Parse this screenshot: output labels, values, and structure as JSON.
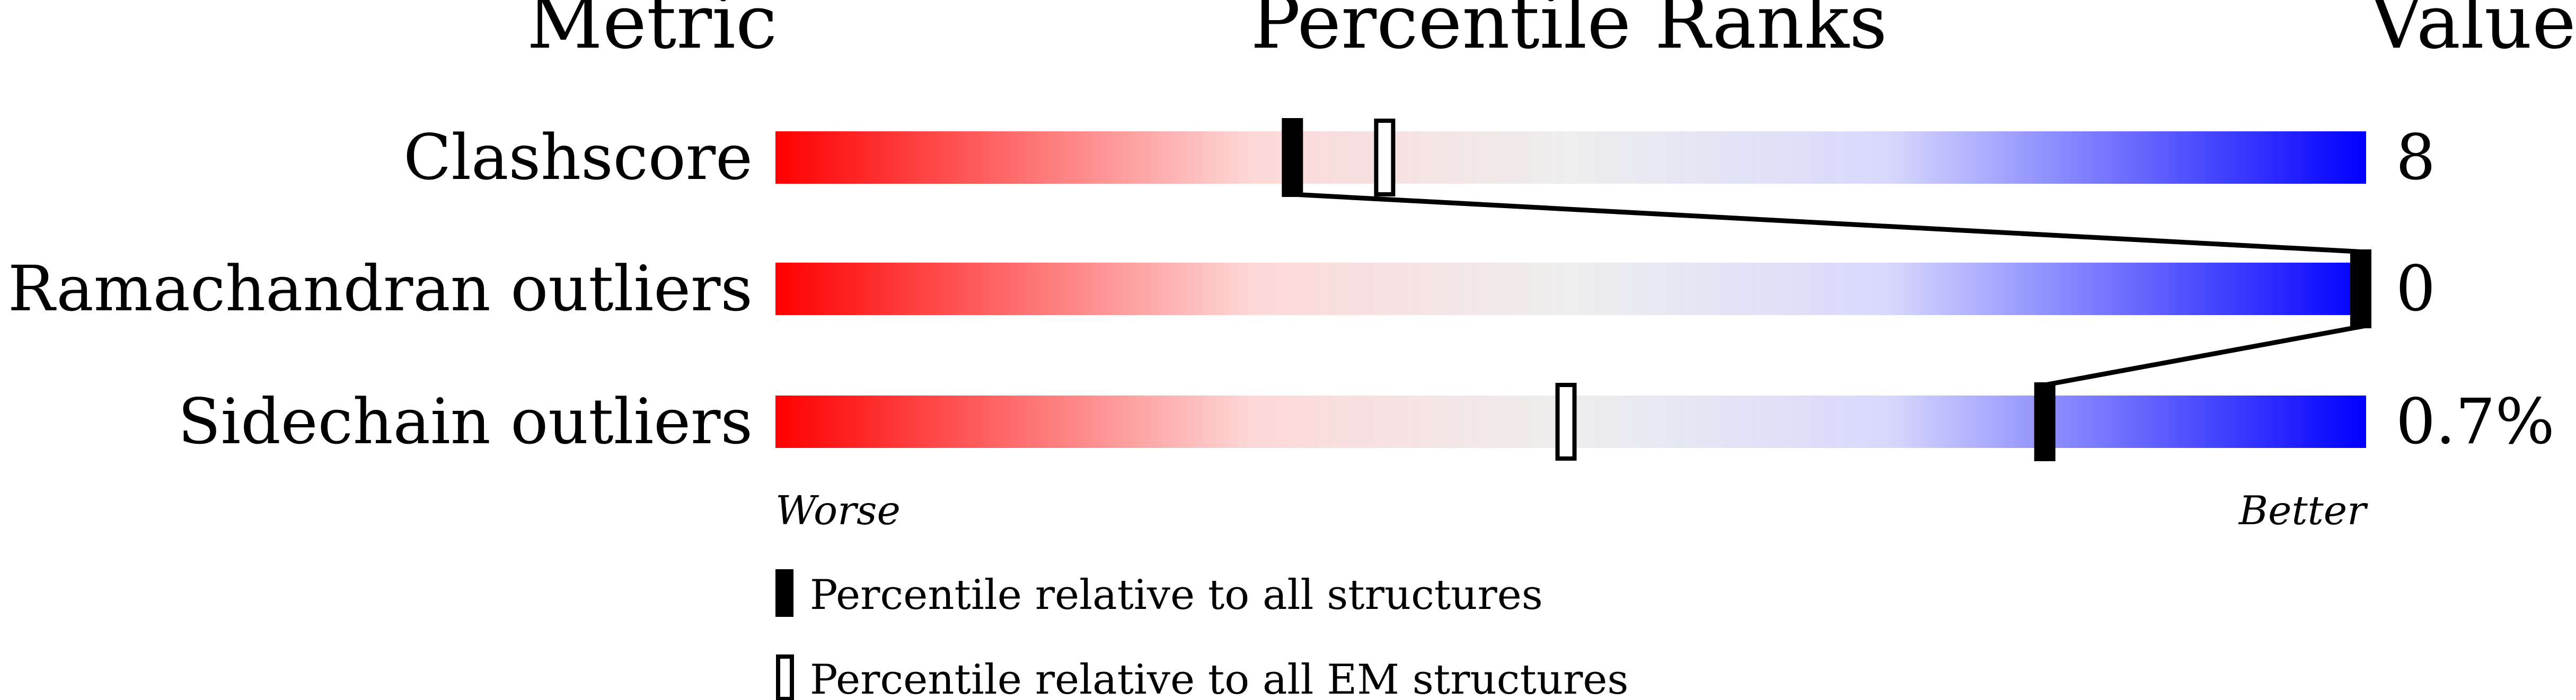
{
  "chart_data": {
    "type": "percentile-slider",
    "headers": {
      "metric": "Metric",
      "ranks": "Percentile Ranks",
      "value": "Value"
    },
    "xlim": [
      0,
      100
    ],
    "rows": [
      {
        "metric": "Clashscore",
        "value": "8",
        "percentile_all": 32.5,
        "percentile_em": 38.3
      },
      {
        "metric": "Ramachandran outliers",
        "value": "0",
        "percentile_all": 100,
        "percentile_em": null
      },
      {
        "metric": "Sidechain outliers",
        "value": "0.7%",
        "percentile_all": 79.8,
        "percentile_em": 49.7
      }
    ],
    "scale_labels": {
      "worse": "Worse",
      "better": "Better"
    },
    "legend": {
      "all": "Percentile relative to all structures",
      "em": "Percentile relative to all EM structures"
    },
    "colors": {
      "worse": "#ff0000",
      "middle": "#eeeeee",
      "better": "#0000ff"
    }
  }
}
